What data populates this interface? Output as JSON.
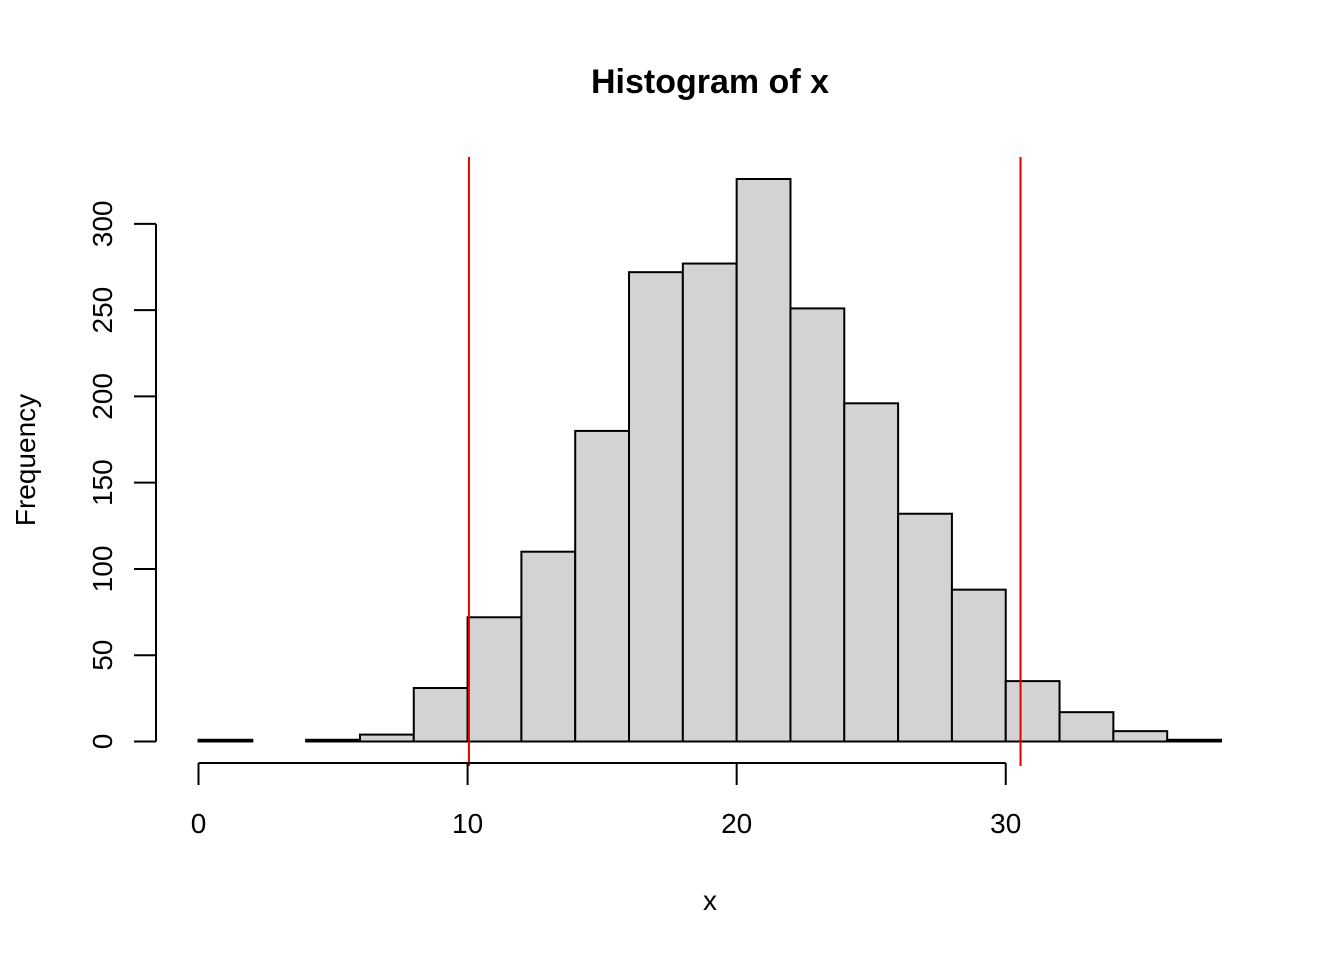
{
  "chart_data": {
    "type": "bar",
    "title": "Histogram of x",
    "xlabel": "x",
    "ylabel": "Frequency",
    "bin_edges": [
      0,
      2,
      4,
      6,
      8,
      10,
      12,
      14,
      16,
      18,
      20,
      22,
      24,
      26,
      28,
      30,
      32,
      34,
      36,
      38
    ],
    "values": [
      1,
      0,
      1,
      4,
      31,
      72,
      110,
      180,
      272,
      277,
      326,
      251,
      196,
      132,
      88,
      35,
      17,
      6,
      1
    ],
    "xlim": [
      0,
      38
    ],
    "ylim": [
      0,
      326
    ],
    "x_ticks": [
      0,
      10,
      20,
      30
    ],
    "y_ticks": [
      0,
      50,
      100,
      150,
      200,
      250,
      300
    ],
    "grid": false,
    "bar_color": "#d3d3d3",
    "reference_lines": [
      {
        "x": 10.05,
        "color": "#e00000"
      },
      {
        "x": 30.55,
        "color": "#e00000"
      }
    ]
  }
}
